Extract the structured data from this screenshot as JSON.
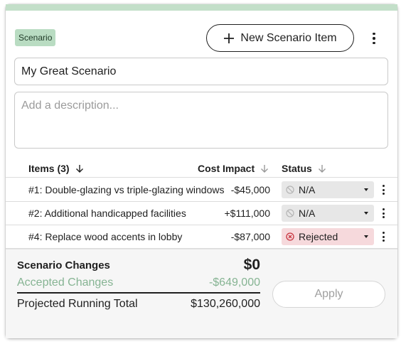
{
  "header": {
    "tag": "Scenario",
    "new_item_label": "New Scenario Item"
  },
  "form": {
    "name_value": "My Great Scenario",
    "description_placeholder": "Add a description..."
  },
  "table": {
    "columns": {
      "items": "Items (3)",
      "cost": "Cost Impact",
      "status": "Status"
    },
    "rows": [
      {
        "name": "#1: Double-glazing vs triple-glazing windows",
        "cost": "-$45,000",
        "status": "N/A",
        "status_icon": "ban-icon"
      },
      {
        "name": "#2: Additional handicapped facilities",
        "cost": "+$111,000",
        "status": "N/A",
        "status_icon": "ban-icon"
      },
      {
        "name": "#4: Replace wood accents in lobby",
        "cost": "-$87,000",
        "status": "Rejected",
        "status_icon": "x-circle-icon"
      }
    ]
  },
  "summary": {
    "title": "Scenario Changes",
    "total": "$0",
    "accepted_label": "Accepted Changes",
    "accepted_value": "-$649,000",
    "projected_label": "Projected Running Total",
    "projected_value": "$130,260,000",
    "apply_label": "Apply"
  },
  "colors": {
    "accent_bar": "#c3dfc9",
    "tag_bg": "#b9dcc2",
    "accepted_text": "#86b493",
    "rejected_bg": "#f6d9dc",
    "rejected_icon": "#c8343f"
  }
}
